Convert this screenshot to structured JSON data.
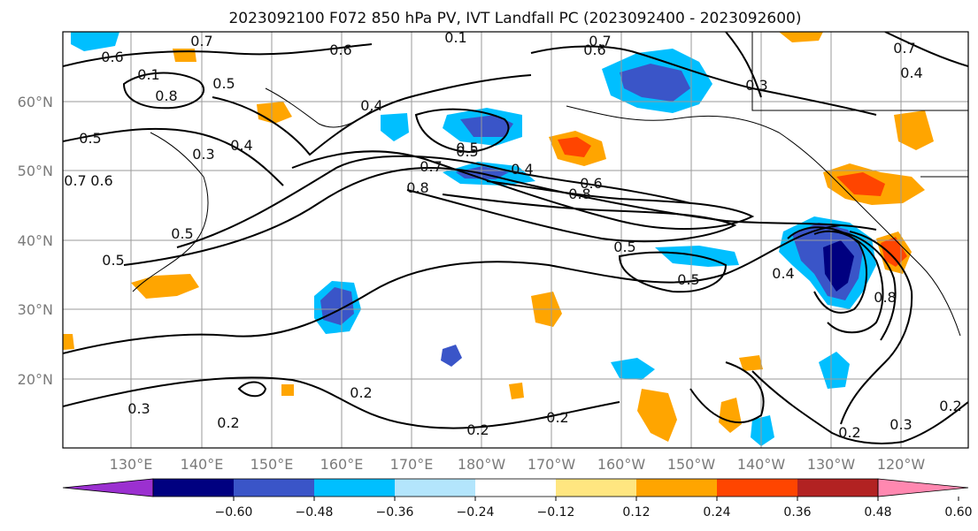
{
  "title": "2023092100 F072 850 hPa PV, IVT Landfall PC (2023092400 - 2023092600)",
  "map": {
    "lat_ticks": [
      "60°N",
      "50°N",
      "40°N",
      "30°N",
      "20°N"
    ],
    "lon_ticks": [
      "130°E",
      "140°E",
      "150°E",
      "160°E",
      "170°E",
      "180°W",
      "170°W",
      "160°W",
      "150°W",
      "140°W",
      "130°W",
      "120°W"
    ],
    "contour_labels": [
      "0.7",
      "0.6",
      "0.6",
      "0.1",
      "0.7",
      "0.6",
      "0.8",
      "0.5",
      "0.4",
      "0.5",
      "0.1",
      "0.4",
      "0.3",
      "0.6",
      "0.7",
      "0.5",
      "0.4",
      "0.7",
      "0.5",
      "0.8",
      "0.5",
      "0.6",
      "0.8",
      "0.5",
      "0.5",
      "0.5",
      "0.3",
      "0.4",
      "0.8",
      "0.3",
      "0.2",
      "0.2",
      "0.2",
      "0.2",
      "0.2",
      "0.3",
      "0.2",
      "0.7",
      "0.4"
    ]
  },
  "colorbar": {
    "tick_labels": [
      "−0.60",
      "−0.48",
      "−0.36",
      "−0.24",
      "−0.12",
      "0.12",
      "0.24",
      "0.36",
      "0.48",
      "0.60"
    ],
    "colors": [
      "#9b30d0",
      "#000080",
      "#3a55c8",
      "#00bfff",
      "#b3e5fc",
      "#ffffff",
      "#ffe680",
      "#ffa500",
      "#ff4500",
      "#b22222",
      "#ff88b0"
    ]
  },
  "fills": {
    "neg_strong": "#3a55c8",
    "neg_mid": "#00bfff",
    "neg_weak": "#b3e5fc",
    "neg_darkest": "#000080",
    "pos_weak": "#ffe680",
    "pos_mid": "#ffa500",
    "pos_strong": "#ff4500",
    "pos_darkest": "#b22222"
  }
}
